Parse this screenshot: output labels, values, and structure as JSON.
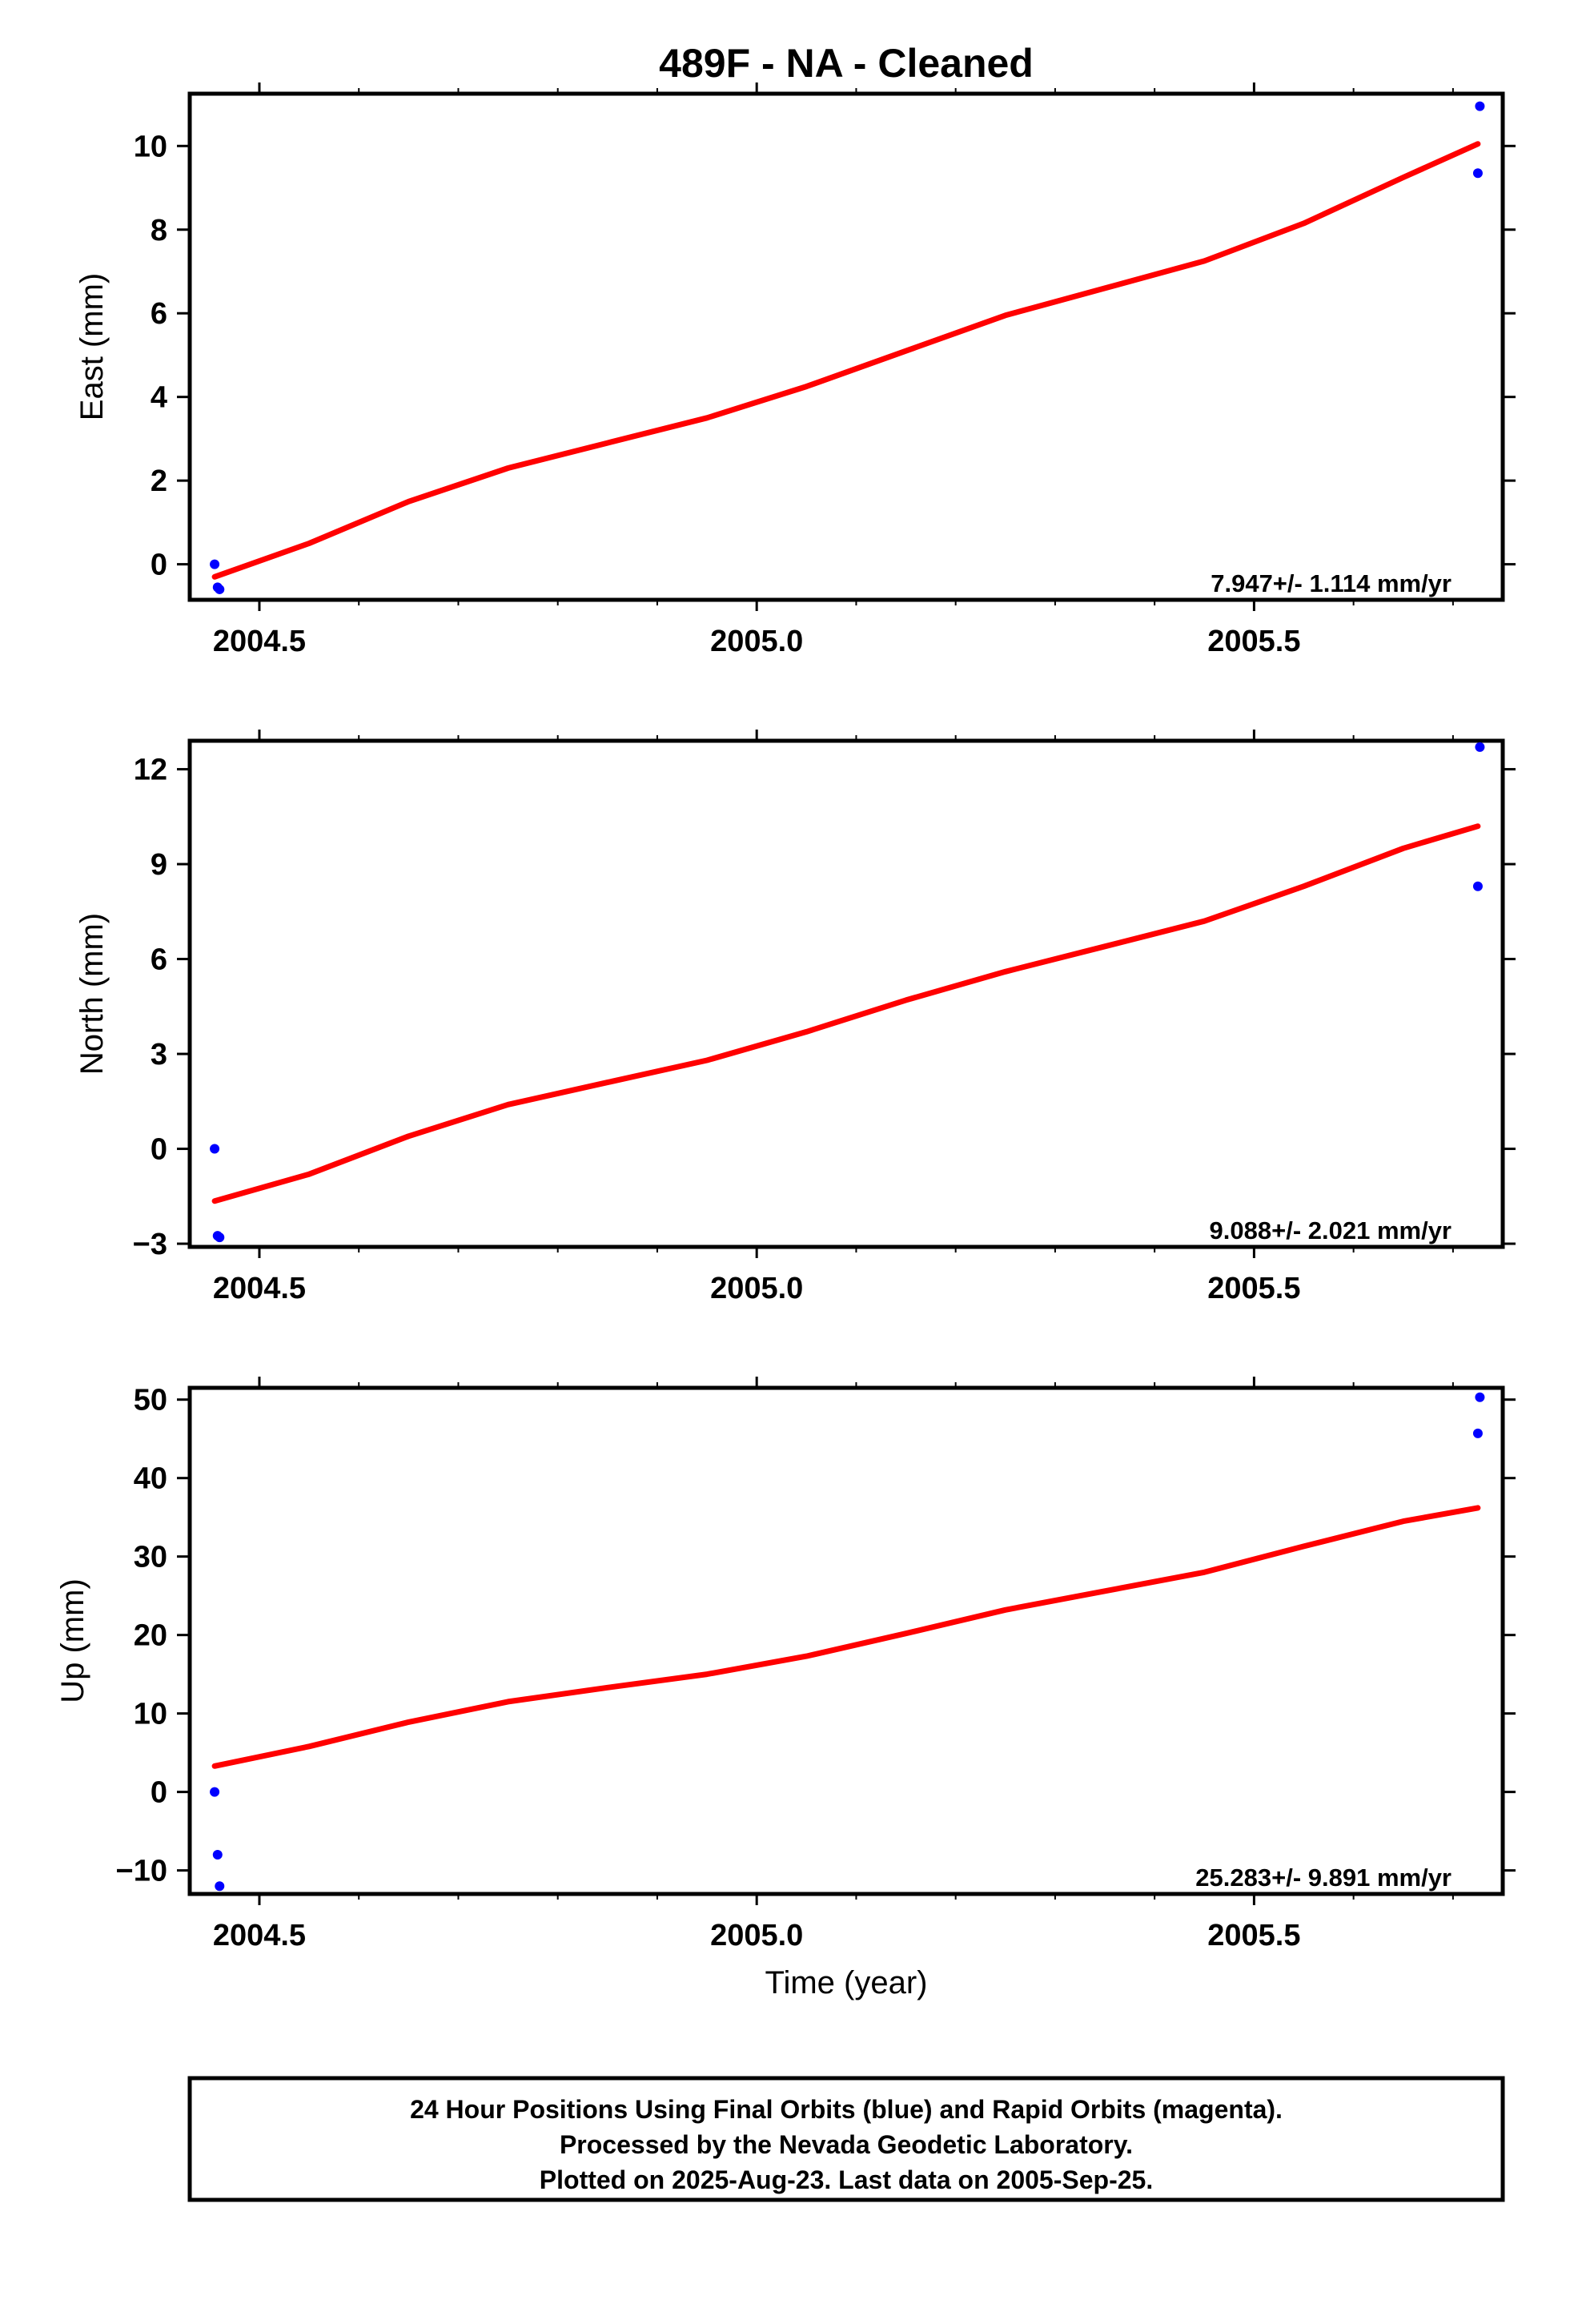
{
  "title": "489F  - NA - Cleaned",
  "colors": {
    "fit": "#ff0000",
    "points": "#0000ff",
    "frame": "#000000"
  },
  "chart_data": [
    {
      "type": "scatter",
      "ylabel": "East (mm)",
      "xlabel": "",
      "xlim": [
        2004.43,
        2005.75
      ],
      "ylim": [
        -0.85,
        11.25
      ],
      "x_ticks": [
        "2004.5",
        "2005.0",
        "2005.5"
      ],
      "y_ticks": [
        "0",
        "2",
        "4",
        "6",
        "8",
        "10"
      ],
      "rate": "7.947+/- 1.114 mm/yr",
      "grid": false,
      "series": [
        {
          "role": "points",
          "x": [
            2004.455,
            2004.458,
            2004.46,
            2005.725,
            2005.727
          ],
          "y": [
            0.0,
            -0.55,
            -0.6,
            9.35,
            10.95
          ]
        },
        {
          "role": "fit",
          "x": [
            2004.455,
            2004.55,
            2004.65,
            2004.75,
            2004.85,
            2004.95,
            2005.05,
            2005.15,
            2005.25,
            2005.35,
            2005.45,
            2005.55,
            2005.65,
            2005.725
          ],
          "y": [
            -0.3,
            0.5,
            1.5,
            2.3,
            2.9,
            3.5,
            4.25,
            5.1,
            5.95,
            6.6,
            7.25,
            8.15,
            9.25,
            10.05
          ]
        }
      ]
    },
    {
      "type": "scatter",
      "ylabel": "North (mm)",
      "xlabel": "",
      "xlim": [
        2004.43,
        2005.75
      ],
      "ylim": [
        -3.1,
        12.9
      ],
      "x_ticks": [
        "2004.5",
        "2005.0",
        "2005.5"
      ],
      "y_ticks": [
        "−3",
        "0",
        "3",
        "6",
        "9",
        "12"
      ],
      "rate": "9.088+/- 2.021 mm/yr",
      "grid": false,
      "series": [
        {
          "role": "points",
          "x": [
            2004.455,
            2004.458,
            2004.46,
            2005.725,
            2005.727
          ],
          "y": [
            0.0,
            -2.75,
            -2.8,
            8.3,
            12.7
          ]
        },
        {
          "role": "fit",
          "x": [
            2004.455,
            2004.55,
            2004.65,
            2004.75,
            2004.85,
            2004.95,
            2005.05,
            2005.15,
            2005.25,
            2005.35,
            2005.45,
            2005.55,
            2005.65,
            2005.725
          ],
          "y": [
            -1.65,
            -0.8,
            0.4,
            1.4,
            2.1,
            2.8,
            3.7,
            4.7,
            5.6,
            6.4,
            7.2,
            8.3,
            9.5,
            10.2
          ]
        }
      ]
    },
    {
      "type": "scatter",
      "ylabel": "Up (mm)",
      "xlabel": "Time (year)",
      "xlim": [
        2004.43,
        2005.75
      ],
      "ylim": [
        -13.0,
        51.5
      ],
      "x_ticks": [
        "2004.5",
        "2005.0",
        "2005.5"
      ],
      "y_ticks": [
        "−10",
        "0",
        "10",
        "20",
        "30",
        "40",
        "50"
      ],
      "rate": "25.283+/- 9.891 mm/yr",
      "grid": false,
      "series": [
        {
          "role": "points",
          "x": [
            2004.455,
            2004.458,
            2004.46,
            2005.725,
            2005.727
          ],
          "y": [
            0.0,
            -8.0,
            -12.0,
            45.7,
            50.3
          ]
        },
        {
          "role": "fit",
          "x": [
            2004.455,
            2004.55,
            2004.65,
            2004.75,
            2004.85,
            2004.95,
            2005.05,
            2005.15,
            2005.25,
            2005.35,
            2005.45,
            2005.55,
            2005.65,
            2005.725
          ],
          "y": [
            3.3,
            5.8,
            8.9,
            11.5,
            13.3,
            15.0,
            17.3,
            20.2,
            23.2,
            25.6,
            28.0,
            31.3,
            34.5,
            36.2
          ]
        }
      ]
    }
  ],
  "footer": {
    "line1": "24 Hour Positions Using Final Orbits (blue) and Rapid Orbits (magenta).",
    "line2": "Processed by the Nevada Geodetic Laboratory.",
    "line3": "Plotted on 2025-Aug-23. Last data on 2005-Sep-25."
  }
}
